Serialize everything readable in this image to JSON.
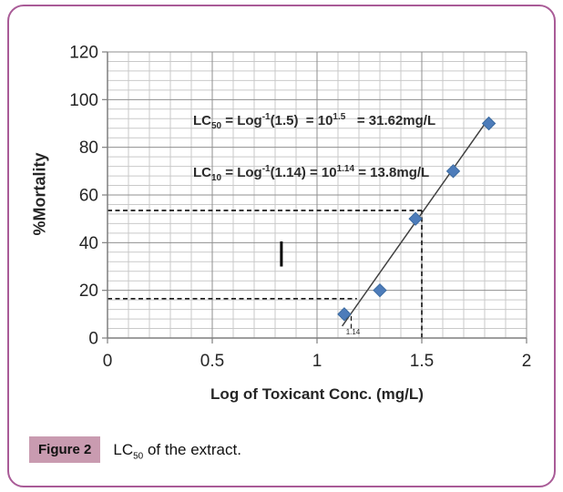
{
  "figure": {
    "caption": {
      "label": "Figure 2",
      "text_segments": [
        {
          "t": "LC"
        },
        {
          "t": "50",
          "style": "sub"
        },
        {
          "t": " of the extract."
        }
      ]
    }
  },
  "chart_data": {
    "type": "scatter",
    "title": "",
    "xlabel": "Log of Toxicant Conc. (mg/L)",
    "ylabel": "%Mortality",
    "xlim": [
      0,
      2
    ],
    "ylim": [
      0,
      120
    ],
    "x_major_ticks": [
      0,
      0.5,
      1,
      1.5,
      2
    ],
    "x_tick_labels": [
      "0",
      "0.5",
      "1",
      "1.5",
      "2"
    ],
    "y_major_ticks": [
      0,
      20,
      40,
      60,
      80,
      100,
      120
    ],
    "y_tick_labels": [
      "0",
      "20",
      "40",
      "60",
      "80",
      "100",
      "120"
    ],
    "x_minor_step": 0.1,
    "y_minor_step": 4,
    "grid": "major+minor",
    "legend": "none",
    "series": [
      {
        "name": "% mortality",
        "marker": "diamond",
        "points": [
          [
            1.13,
            10
          ],
          [
            1.3,
            20
          ],
          [
            1.47,
            50
          ],
          [
            1.65,
            70
          ],
          [
            1.82,
            90
          ]
        ]
      }
    ],
    "trendline": {
      "x1": 1.12,
      "y1": 5,
      "x2": 1.81,
      "y2": 91
    },
    "reference_lines": [
      {
        "orientation": "horizontal",
        "y": 53.5,
        "x_start": 0,
        "x_end": 1.5,
        "style": "dashed"
      },
      {
        "orientation": "vertical",
        "x": 1.5,
        "y_start": 0,
        "y_end": 53.5,
        "style": "dashed"
      },
      {
        "orientation": "horizontal",
        "y": 16.5,
        "x_start": 0,
        "x_end": 1.19,
        "style": "dashed"
      },
      {
        "orientation": "vertical",
        "x": 1.163,
        "y_start": 4,
        "y_end": 10.5,
        "style": "dashed",
        "label": "1.14"
      }
    ],
    "stray_mark": {
      "x": 0.83,
      "y_start": 30,
      "y_end": 40.5
    },
    "annotations": [
      [
        {
          "t": "LC"
        },
        {
          "t": "50",
          "style": "sub"
        },
        {
          "t": " = Log"
        },
        {
          "t": "-1",
          "style": "sup"
        },
        {
          "t": "(1.5)  = 10"
        },
        {
          "t": "1.5",
          "style": "sup"
        },
        {
          "t": "   = 31.62mg/L"
        }
      ],
      [
        {
          "t": "LC"
        },
        {
          "t": "10",
          "style": "sub"
        },
        {
          "t": " = Log"
        },
        {
          "t": "-1",
          "style": "sup"
        },
        {
          "t": "(1.14) = 10"
        },
        {
          "t": "1.14",
          "style": "sup"
        },
        {
          "t": " = 13.8mg/L"
        }
      ]
    ]
  },
  "colors": {
    "frame_border": "#a95b97",
    "caption_bg": "#c99bb0",
    "marker_fill": "#4d7cba",
    "marker_stroke": "#3a6aa0",
    "trend_line": "#404040",
    "grid_major": "#8f8f8f",
    "grid_minor": "#c9c9c9",
    "axis": "#7f7f7f",
    "ref_line": "#1a1a1a",
    "text": "#262626"
  }
}
